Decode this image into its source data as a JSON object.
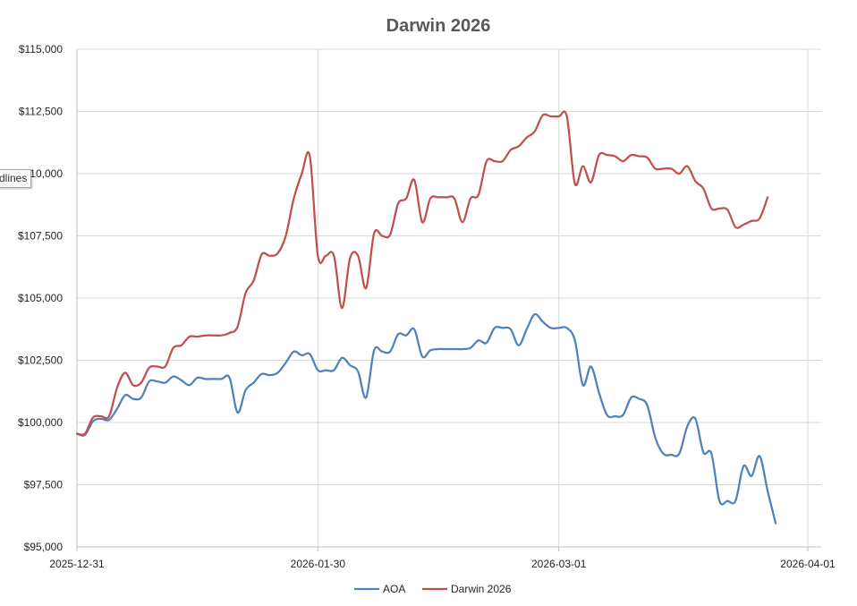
{
  "tooltip": {
    "text": "dlines"
  },
  "chart_data": {
    "type": "line",
    "title": "Darwin 2026",
    "xlabel": "",
    "ylabel": "",
    "x_ticks": [
      "2025-12-31",
      "2026-01-30",
      "2026-03-01",
      "2026-04-01"
    ],
    "x_range": [
      "2025-12-31",
      "2026-04-01"
    ],
    "y_ticks": [
      "$95,000",
      "$97,500",
      "$100,000",
      "$102,500",
      "$105,000",
      "$107,500",
      "$110,000",
      "$112,500",
      "$115,000"
    ],
    "ylim": [
      95000,
      115000
    ],
    "grid": {
      "vertical": true,
      "horizontal": true
    },
    "legend": {
      "position": "bottom"
    },
    "series": [
      {
        "name": "AOA",
        "color": "#4f81bd",
        "points": [
          [
            "2025-12-31",
            99550
          ],
          [
            "2026-01-01",
            99500
          ],
          [
            "2026-01-02",
            100050
          ],
          [
            "2026-01-03",
            100150
          ],
          [
            "2026-01-04",
            100100
          ],
          [
            "2026-01-05",
            100550
          ],
          [
            "2026-01-06",
            101100
          ],
          [
            "2026-01-07",
            100950
          ],
          [
            "2026-01-08",
            101000
          ],
          [
            "2026-01-09",
            101650
          ],
          [
            "2026-01-10",
            101650
          ],
          [
            "2026-01-11",
            101600
          ],
          [
            "2026-01-12",
            101850
          ],
          [
            "2026-01-13",
            101700
          ],
          [
            "2026-01-14",
            101500
          ],
          [
            "2026-01-15",
            101800
          ],
          [
            "2026-01-16",
            101750
          ],
          [
            "2026-01-17",
            101750
          ],
          [
            "2026-01-18",
            101750
          ],
          [
            "2026-01-19",
            101800
          ],
          [
            "2026-01-20",
            100400
          ],
          [
            "2026-01-21",
            101300
          ],
          [
            "2026-01-22",
            101600
          ],
          [
            "2026-01-23",
            101950
          ],
          [
            "2026-01-24",
            101900
          ],
          [
            "2026-01-25",
            102000
          ],
          [
            "2026-01-26",
            102400
          ],
          [
            "2026-01-27",
            102850
          ],
          [
            "2026-01-28",
            102700
          ],
          [
            "2026-01-29",
            102750
          ],
          [
            "2026-01-30",
            102100
          ],
          [
            "2026-01-31",
            102100
          ],
          [
            "2026-02-01",
            102100
          ],
          [
            "2026-02-02",
            102600
          ],
          [
            "2026-02-03",
            102300
          ],
          [
            "2026-02-04",
            102050
          ],
          [
            "2026-02-05",
            101000
          ],
          [
            "2026-02-06",
            102900
          ],
          [
            "2026-02-07",
            102850
          ],
          [
            "2026-02-08",
            102850
          ],
          [
            "2026-02-09",
            103550
          ],
          [
            "2026-02-10",
            103500
          ],
          [
            "2026-02-11",
            103750
          ],
          [
            "2026-02-12",
            102650
          ],
          [
            "2026-02-13",
            102900
          ],
          [
            "2026-02-14",
            102950
          ],
          [
            "2026-02-15",
            102950
          ],
          [
            "2026-02-16",
            102950
          ],
          [
            "2026-02-17",
            102950
          ],
          [
            "2026-02-18",
            103000
          ],
          [
            "2026-02-19",
            103300
          ],
          [
            "2026-02-20",
            103200
          ],
          [
            "2026-02-21",
            103800
          ],
          [
            "2026-02-22",
            103800
          ],
          [
            "2026-02-23",
            103750
          ],
          [
            "2026-02-24",
            103100
          ],
          [
            "2026-02-25",
            103750
          ],
          [
            "2026-02-26",
            104350
          ],
          [
            "2026-02-27",
            104050
          ],
          [
            "2026-02-28",
            103800
          ],
          [
            "2026-03-01",
            103800
          ],
          [
            "2026-03-02",
            103800
          ],
          [
            "2026-03-03",
            103300
          ],
          [
            "2026-03-04",
            101500
          ],
          [
            "2026-03-05",
            102250
          ],
          [
            "2026-03-06",
            101200
          ],
          [
            "2026-03-07",
            100300
          ],
          [
            "2026-03-08",
            100250
          ],
          [
            "2026-03-09",
            100300
          ],
          [
            "2026-03-10",
            101000
          ],
          [
            "2026-03-11",
            100950
          ],
          [
            "2026-03-12",
            100700
          ],
          [
            "2026-03-13",
            99400
          ],
          [
            "2026-03-14",
            98750
          ],
          [
            "2026-03-15",
            98700
          ],
          [
            "2026-03-16",
            98750
          ],
          [
            "2026-03-17",
            99850
          ],
          [
            "2026-03-18",
            100150
          ],
          [
            "2026-03-19",
            98800
          ],
          [
            "2026-03-20",
            98750
          ],
          [
            "2026-03-21",
            96850
          ],
          [
            "2026-03-22",
            96850
          ],
          [
            "2026-03-23",
            96850
          ],
          [
            "2026-03-24",
            98250
          ],
          [
            "2026-03-25",
            97850
          ],
          [
            "2026-03-26",
            98650
          ],
          [
            "2026-03-27",
            97250
          ],
          [
            "2026-03-28",
            95950
          ]
        ]
      },
      {
        "name": "Darwin 2026",
        "color": "#c0504d",
        "points": [
          [
            "2025-12-31",
            99550
          ],
          [
            "2026-01-01",
            99550
          ],
          [
            "2026-01-02",
            100200
          ],
          [
            "2026-01-03",
            100250
          ],
          [
            "2026-01-04",
            100250
          ],
          [
            "2026-01-05",
            101400
          ],
          [
            "2026-01-06",
            102000
          ],
          [
            "2026-01-07",
            101500
          ],
          [
            "2026-01-08",
            101600
          ],
          [
            "2026-01-09",
            102200
          ],
          [
            "2026-01-10",
            102250
          ],
          [
            "2026-01-11",
            102250
          ],
          [
            "2026-01-12",
            103000
          ],
          [
            "2026-01-13",
            103100
          ],
          [
            "2026-01-14",
            103450
          ],
          [
            "2026-01-15",
            103450
          ],
          [
            "2026-01-16",
            103500
          ],
          [
            "2026-01-17",
            103500
          ],
          [
            "2026-01-18",
            103500
          ],
          [
            "2026-01-19",
            103600
          ],
          [
            "2026-01-20",
            103850
          ],
          [
            "2026-01-21",
            105200
          ],
          [
            "2026-01-22",
            105700
          ],
          [
            "2026-01-23",
            106750
          ],
          [
            "2026-01-24",
            106700
          ],
          [
            "2026-01-25",
            106800
          ],
          [
            "2026-01-26",
            107500
          ],
          [
            "2026-01-27",
            109000
          ],
          [
            "2026-01-28",
            110000
          ],
          [
            "2026-01-29",
            110700
          ],
          [
            "2026-01-30",
            106700
          ],
          [
            "2026-01-31",
            106700
          ],
          [
            "2026-02-01",
            106700
          ],
          [
            "2026-02-02",
            104600
          ],
          [
            "2026-02-03",
            106600
          ],
          [
            "2026-02-04",
            106700
          ],
          [
            "2026-02-05",
            105400
          ],
          [
            "2026-02-06",
            107600
          ],
          [
            "2026-02-07",
            107500
          ],
          [
            "2026-02-08",
            107550
          ],
          [
            "2026-02-09",
            108800
          ],
          [
            "2026-02-10",
            109000
          ],
          [
            "2026-02-11",
            109750
          ],
          [
            "2026-02-12",
            108050
          ],
          [
            "2026-02-13",
            109000
          ],
          [
            "2026-02-14",
            109050
          ],
          [
            "2026-02-15",
            109050
          ],
          [
            "2026-02-16",
            109000
          ],
          [
            "2026-02-17",
            108050
          ],
          [
            "2026-02-18",
            109000
          ],
          [
            "2026-02-19",
            109150
          ],
          [
            "2026-02-20",
            110500
          ],
          [
            "2026-02-21",
            110500
          ],
          [
            "2026-02-22",
            110500
          ],
          [
            "2026-02-23",
            110950
          ],
          [
            "2026-02-24",
            111100
          ],
          [
            "2026-02-25",
            111450
          ],
          [
            "2026-02-26",
            111700
          ],
          [
            "2026-02-27",
            112350
          ],
          [
            "2026-02-28",
            112300
          ],
          [
            "2026-03-01",
            112300
          ],
          [
            "2026-03-02",
            112300
          ],
          [
            "2026-03-03",
            109600
          ],
          [
            "2026-03-04",
            110300
          ],
          [
            "2026-03-05",
            109650
          ],
          [
            "2026-03-06",
            110750
          ],
          [
            "2026-03-07",
            110750
          ],
          [
            "2026-03-08",
            110700
          ],
          [
            "2026-03-09",
            110500
          ],
          [
            "2026-03-10",
            110750
          ],
          [
            "2026-03-11",
            110700
          ],
          [
            "2026-03-12",
            110650
          ],
          [
            "2026-03-13",
            110200
          ],
          [
            "2026-03-14",
            110200
          ],
          [
            "2026-03-15",
            110200
          ],
          [
            "2026-03-16",
            110000
          ],
          [
            "2026-03-17",
            110300
          ],
          [
            "2026-03-18",
            109700
          ],
          [
            "2026-03-19",
            109400
          ],
          [
            "2026-03-20",
            108600
          ],
          [
            "2026-03-21",
            108600
          ],
          [
            "2026-03-22",
            108550
          ],
          [
            "2026-03-23",
            107850
          ],
          [
            "2026-03-24",
            107950
          ],
          [
            "2026-03-25",
            108100
          ],
          [
            "2026-03-26",
            108200
          ],
          [
            "2026-03-27",
            109050
          ]
        ]
      }
    ]
  }
}
